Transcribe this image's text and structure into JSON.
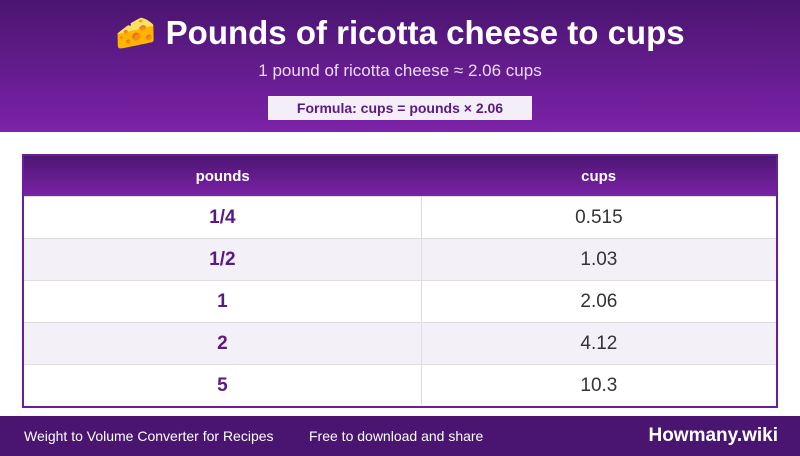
{
  "header": {
    "title": "🧀 Pounds of ricotta cheese to cups",
    "subtitle": "1 pound of ricotta cheese ≈ 2.06 cups",
    "formula": "Formula: cups = pounds × 2.06"
  },
  "table": {
    "columns": [
      "pounds",
      "cups"
    ],
    "rows": [
      [
        "1/4",
        "0.515"
      ],
      [
        "1/2",
        "1.03"
      ],
      [
        "1",
        "2.06"
      ],
      [
        "2",
        "4.12"
      ],
      [
        "5",
        "10.3"
      ]
    ]
  },
  "footer": {
    "left": "Weight to Volume Converter for Recipes",
    "middle": "Free to download and share",
    "brand": "Howmany.wiki"
  }
}
